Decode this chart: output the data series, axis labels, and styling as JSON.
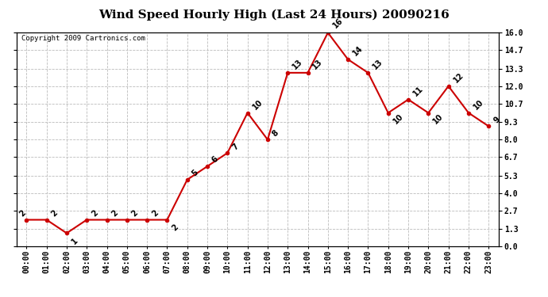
{
  "title": "Wind Speed Hourly High (Last 24 Hours) 20090216",
  "copyright": "Copyright 2009 Cartronics.com",
  "hours": [
    "00:00",
    "01:00",
    "02:00",
    "03:00",
    "04:00",
    "05:00",
    "06:00",
    "07:00",
    "08:00",
    "09:00",
    "10:00",
    "11:00",
    "12:00",
    "13:00",
    "14:00",
    "15:00",
    "16:00",
    "17:00",
    "18:00",
    "19:00",
    "20:00",
    "21:00",
    "22:00",
    "23:00"
  ],
  "values": [
    2,
    2,
    1,
    2,
    2,
    2,
    2,
    2,
    5,
    6,
    7,
    10,
    8,
    13,
    13,
    16,
    14,
    13,
    10,
    11,
    10,
    12,
    10,
    9
  ],
  "ylim": [
    0.0,
    16.0
  ],
  "yticks": [
    0.0,
    1.3,
    2.7,
    4.0,
    5.3,
    6.7,
    8.0,
    9.3,
    10.7,
    12.0,
    13.3,
    14.7,
    16.0
  ],
  "line_color": "#cc0000",
  "marker_size": 3,
  "bg_color": "#ffffff",
  "grid_color": "#bbbbbb",
  "title_fontsize": 11,
  "annotation_fontsize": 7,
  "tick_fontsize": 7,
  "copyright_fontsize": 6.5
}
